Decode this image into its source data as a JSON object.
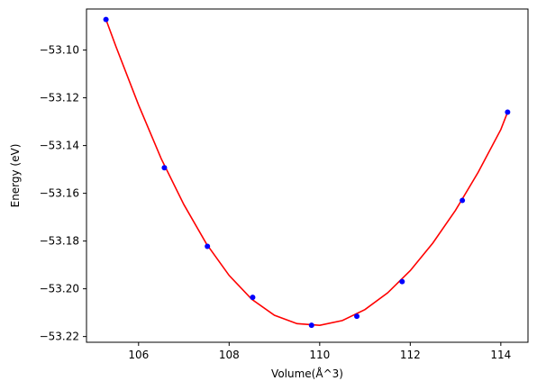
{
  "chart_data": {
    "type": "scatter",
    "xlabel": "Volume(Å^3)",
    "ylabel": "Energy (eV)",
    "xlim": [
      104.85,
      114.6
    ],
    "ylim": [
      -53.2224,
      -53.0828
    ],
    "xticks": [
      106,
      108,
      110,
      112,
      114
    ],
    "yticks": [
      -53.1,
      -53.12,
      -53.14,
      -53.16,
      -53.18,
      -53.2,
      -53.22
    ],
    "xtick_labels": [
      "106",
      "108",
      "110",
      "112",
      "114"
    ],
    "ytick_labels": [
      "−53.10",
      "−53.12",
      "−53.14",
      "−53.16",
      "−53.18",
      "−53.20",
      "−53.22"
    ],
    "grid": false,
    "series": [
      {
        "kind": "points",
        "color": "#0000ff",
        "x": [
          105.28,
          106.57,
          107.52,
          108.52,
          109.82,
          110.82,
          111.82,
          113.15,
          114.15
        ],
        "y": [
          -53.0872,
          -53.1493,
          -53.1822,
          -53.2036,
          -53.2153,
          -53.2115,
          -53.197,
          -53.163,
          -53.126
        ]
      },
      {
        "kind": "fit-line",
        "color": "#ff0000",
        "x": [
          105.28,
          105.5,
          106.0,
          106.5,
          107.0,
          107.5,
          108.0,
          108.5,
          109.0,
          109.5,
          110.0,
          110.5,
          111.0,
          111.5,
          112.0,
          112.5,
          113.0,
          113.5,
          114.0,
          114.15
        ],
        "y": [
          -53.0872,
          -53.0985,
          -53.123,
          -53.1455,
          -53.1647,
          -53.1812,
          -53.1944,
          -53.2044,
          -53.2111,
          -53.2146,
          -53.2153,
          -53.2133,
          -53.2087,
          -53.2017,
          -53.1924,
          -53.1808,
          -53.1671,
          -53.1512,
          -53.1333,
          -53.126
        ]
      }
    ]
  }
}
